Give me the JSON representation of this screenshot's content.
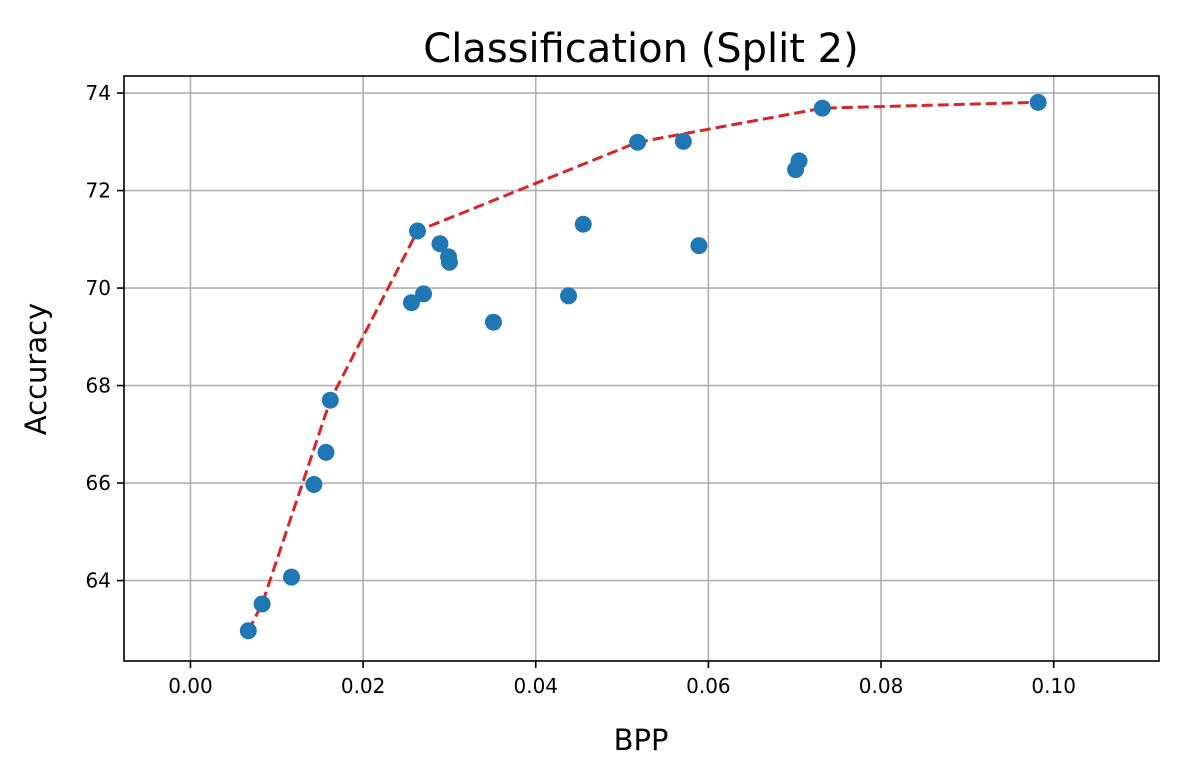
{
  "chart_data": {
    "type": "scatter",
    "title": "Classification (Split 2)",
    "xlabel": "BPP",
    "ylabel": "Accuracy",
    "xlim": [
      -0.0077,
      0.1122
    ],
    "ylim": [
      62.35,
      74.35
    ],
    "xticks": [
      0.0,
      0.02,
      0.04,
      0.06,
      0.08,
      0.1
    ],
    "xtick_labels": [
      "0.00",
      "0.02",
      "0.04",
      "0.06",
      "0.08",
      "0.10"
    ],
    "yticks": [
      64,
      66,
      68,
      70,
      72,
      74
    ],
    "ytick_labels": [
      "64",
      "66",
      "68",
      "70",
      "72",
      "74"
    ],
    "grid": true,
    "series": [
      {
        "kind": "scatter",
        "color": "#1f77b4",
        "x": [
          0.0067,
          0.0083,
          0.0117,
          0.0143,
          0.0157,
          0.0162,
          0.0256,
          0.0263,
          0.027,
          0.0289,
          0.0299,
          0.03,
          0.0351,
          0.0438,
          0.0455,
          0.0518,
          0.0571,
          0.0589,
          0.0701,
          0.0705,
          0.0732,
          0.0982
        ],
        "y": [
          62.97,
          63.52,
          64.07,
          65.97,
          66.63,
          67.7,
          69.7,
          71.17,
          69.88,
          70.91,
          70.64,
          70.53,
          69.3,
          69.84,
          71.31,
          72.99,
          73.01,
          70.87,
          72.43,
          72.61,
          73.69,
          73.81
        ]
      },
      {
        "kind": "line",
        "style": "dashed",
        "color": "#d62728",
        "x": [
          0.0067,
          0.0083,
          0.0162,
          0.0263,
          0.0518,
          0.0732,
          0.0982
        ],
        "y": [
          62.97,
          63.52,
          67.7,
          71.17,
          72.99,
          73.69,
          73.81
        ]
      }
    ]
  }
}
